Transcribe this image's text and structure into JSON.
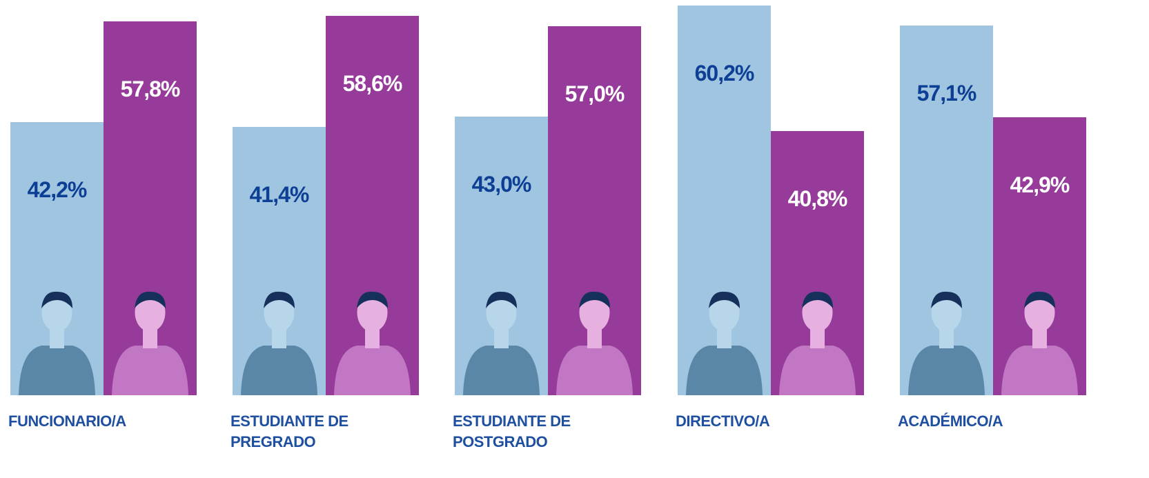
{
  "chart_data": {
    "type": "bar",
    "categories": [
      "FUNCIONARIO/A",
      "ESTUDIANTE DE PREGRADO",
      "ESTUDIANTE DE POSTGRADO",
      "DIRECTIVO/A",
      "ACADÉMICO/A"
    ],
    "series": [
      {
        "color": "#9fc5e0",
        "label_color": "#0d3f94",
        "values": [
          42.2,
          41.4,
          43.0,
          60.2,
          57.1
        ],
        "value_labels": [
          "42,2%",
          "41,4%",
          "43,0%",
          "60,2%",
          "57,1%"
        ]
      },
      {
        "color": "#963b9a",
        "label_color": "#ffffff",
        "values": [
          57.8,
          58.6,
          57.0,
          40.8,
          42.9
        ],
        "value_labels": [
          "57,8%",
          "58,6%",
          "57,0%",
          "40,8%",
          "42,9%"
        ]
      }
    ]
  }
}
